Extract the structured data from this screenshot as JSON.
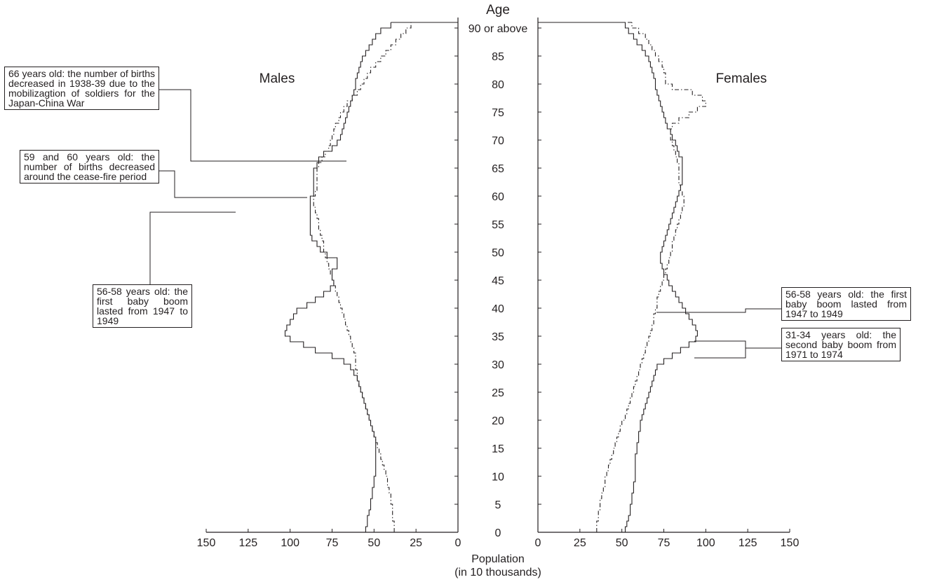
{
  "chart_data": {
    "type": "population-pyramid",
    "title": "",
    "y_axis_label": "Age",
    "x_axis_label_line1": "Population",
    "x_axis_label_line2": "(in 10 thousands)",
    "left_panel_label": "Males",
    "right_panel_label": "Females",
    "age_ticks": [
      "0",
      "5",
      "10",
      "15",
      "20",
      "25",
      "30",
      "35",
      "40",
      "45",
      "50",
      "55",
      "60",
      "65",
      "70",
      "75",
      "80",
      "85",
      "90 or above"
    ],
    "population_ticks": [
      "150",
      "125",
      "100",
      "75",
      "50",
      "25",
      "0"
    ],
    "population_ticks_right": [
      "0",
      "25",
      "50",
      "75",
      "100",
      "125",
      "150"
    ],
    "xlim": [
      0,
      150
    ],
    "ylim": [
      0,
      90
    ],
    "series": [
      {
        "style": "solid",
        "males": [
          55,
          54,
          54,
          53,
          52,
          52,
          51,
          51,
          50,
          50,
          49,
          49,
          49,
          49,
          49,
          49,
          49,
          50,
          51,
          52,
          53,
          54,
          55,
          56,
          57,
          58,
          59,
          60,
          62,
          64,
          68,
          75,
          85,
          92,
          100,
          103,
          102,
          100,
          98,
          96,
          90,
          85,
          80,
          76,
          74,
          75,
          75,
          72,
          72,
          78,
          82,
          84,
          87,
          88,
          88,
          88,
          88,
          88,
          88,
          88,
          86,
          86,
          86,
          86,
          86,
          84,
          83,
          80,
          75,
          72,
          70,
          69,
          68,
          67,
          66,
          65,
          64,
          63,
          62,
          61,
          61,
          60,
          59,
          58,
          57,
          55,
          53,
          51,
          49,
          46,
          40
        ],
        "females": [
          52,
          53,
          54,
          55,
          55,
          56,
          56,
          57,
          57,
          58,
          58,
          58,
          58,
          58,
          59,
          59,
          60,
          60,
          61,
          61,
          62,
          63,
          64,
          65,
          66,
          67,
          68,
          69,
          70,
          71,
          75,
          80,
          85,
          90,
          94,
          95,
          94,
          92,
          90,
          88,
          86,
          84,
          82,
          80,
          78,
          77,
          75,
          74,
          73,
          73,
          74,
          75,
          76,
          77,
          78,
          79,
          80,
          81,
          82,
          83,
          84,
          85,
          86,
          86,
          86,
          86,
          86,
          84,
          83,
          82,
          80,
          79,
          77,
          76,
          75,
          74,
          73,
          72,
          71,
          70,
          70,
          69,
          68,
          67,
          66,
          64,
          62,
          59,
          57,
          54,
          52
        ]
      },
      {
        "style": "dashed",
        "males": [
          38,
          38,
          39,
          39,
          39,
          40,
          40,
          41,
          42,
          42,
          43,
          44,
          45,
          46,
          47,
          48,
          49,
          50,
          51,
          52,
          53,
          54,
          55,
          56,
          57,
          58,
          59,
          60,
          60,
          61,
          61,
          61,
          62,
          63,
          64,
          65,
          66,
          67,
          68,
          69,
          70,
          71,
          72,
          73,
          74,
          75,
          76,
          77,
          78,
          79,
          80,
          80,
          81,
          82,
          83,
          83,
          84,
          85,
          86,
          86,
          85,
          84,
          84,
          84,
          84,
          83,
          81,
          79,
          77,
          76,
          75,
          74,
          73,
          71,
          70,
          68,
          66,
          63,
          60,
          58,
          56,
          54,
          52,
          49,
          46,
          43,
          40,
          37,
          34,
          31,
          28
        ],
        "females": [
          35,
          35,
          36,
          36,
          37,
          37,
          38,
          39,
          40,
          40,
          41,
          42,
          43,
          44,
          45,
          46,
          47,
          48,
          49,
          50,
          52,
          53,
          54,
          55,
          56,
          57,
          58,
          59,
          60,
          61,
          62,
          63,
          64,
          65,
          66,
          67,
          68,
          69,
          69,
          70,
          71,
          71,
          72,
          73,
          74,
          75,
          76,
          77,
          78,
          79,
          80,
          80,
          81,
          82,
          83,
          84,
          85,
          86,
          87,
          87,
          86,
          85,
          84,
          84,
          84,
          84,
          83,
          82,
          81,
          80,
          79,
          79,
          80,
          84,
          90,
          95,
          100,
          98,
          92,
          80,
          76,
          76,
          75,
          74,
          72,
          70,
          68,
          66,
          64,
          60,
          56
        ]
      }
    ],
    "annotations": [
      "66 years old: the number of births decreased in 1938-39 due to the mobilizagtion of soldiers for the Japan-China War",
      "59 and 60 years old: the number of births decreased around the cease-fire period",
      "56-58 years old: the first baby boom lasted from 1947 to 1949",
      "56-58 years old: the first baby boom lasted from 1947 to 1949",
      "31-34 years old: the second baby boom from 1971 to 1974"
    ]
  }
}
